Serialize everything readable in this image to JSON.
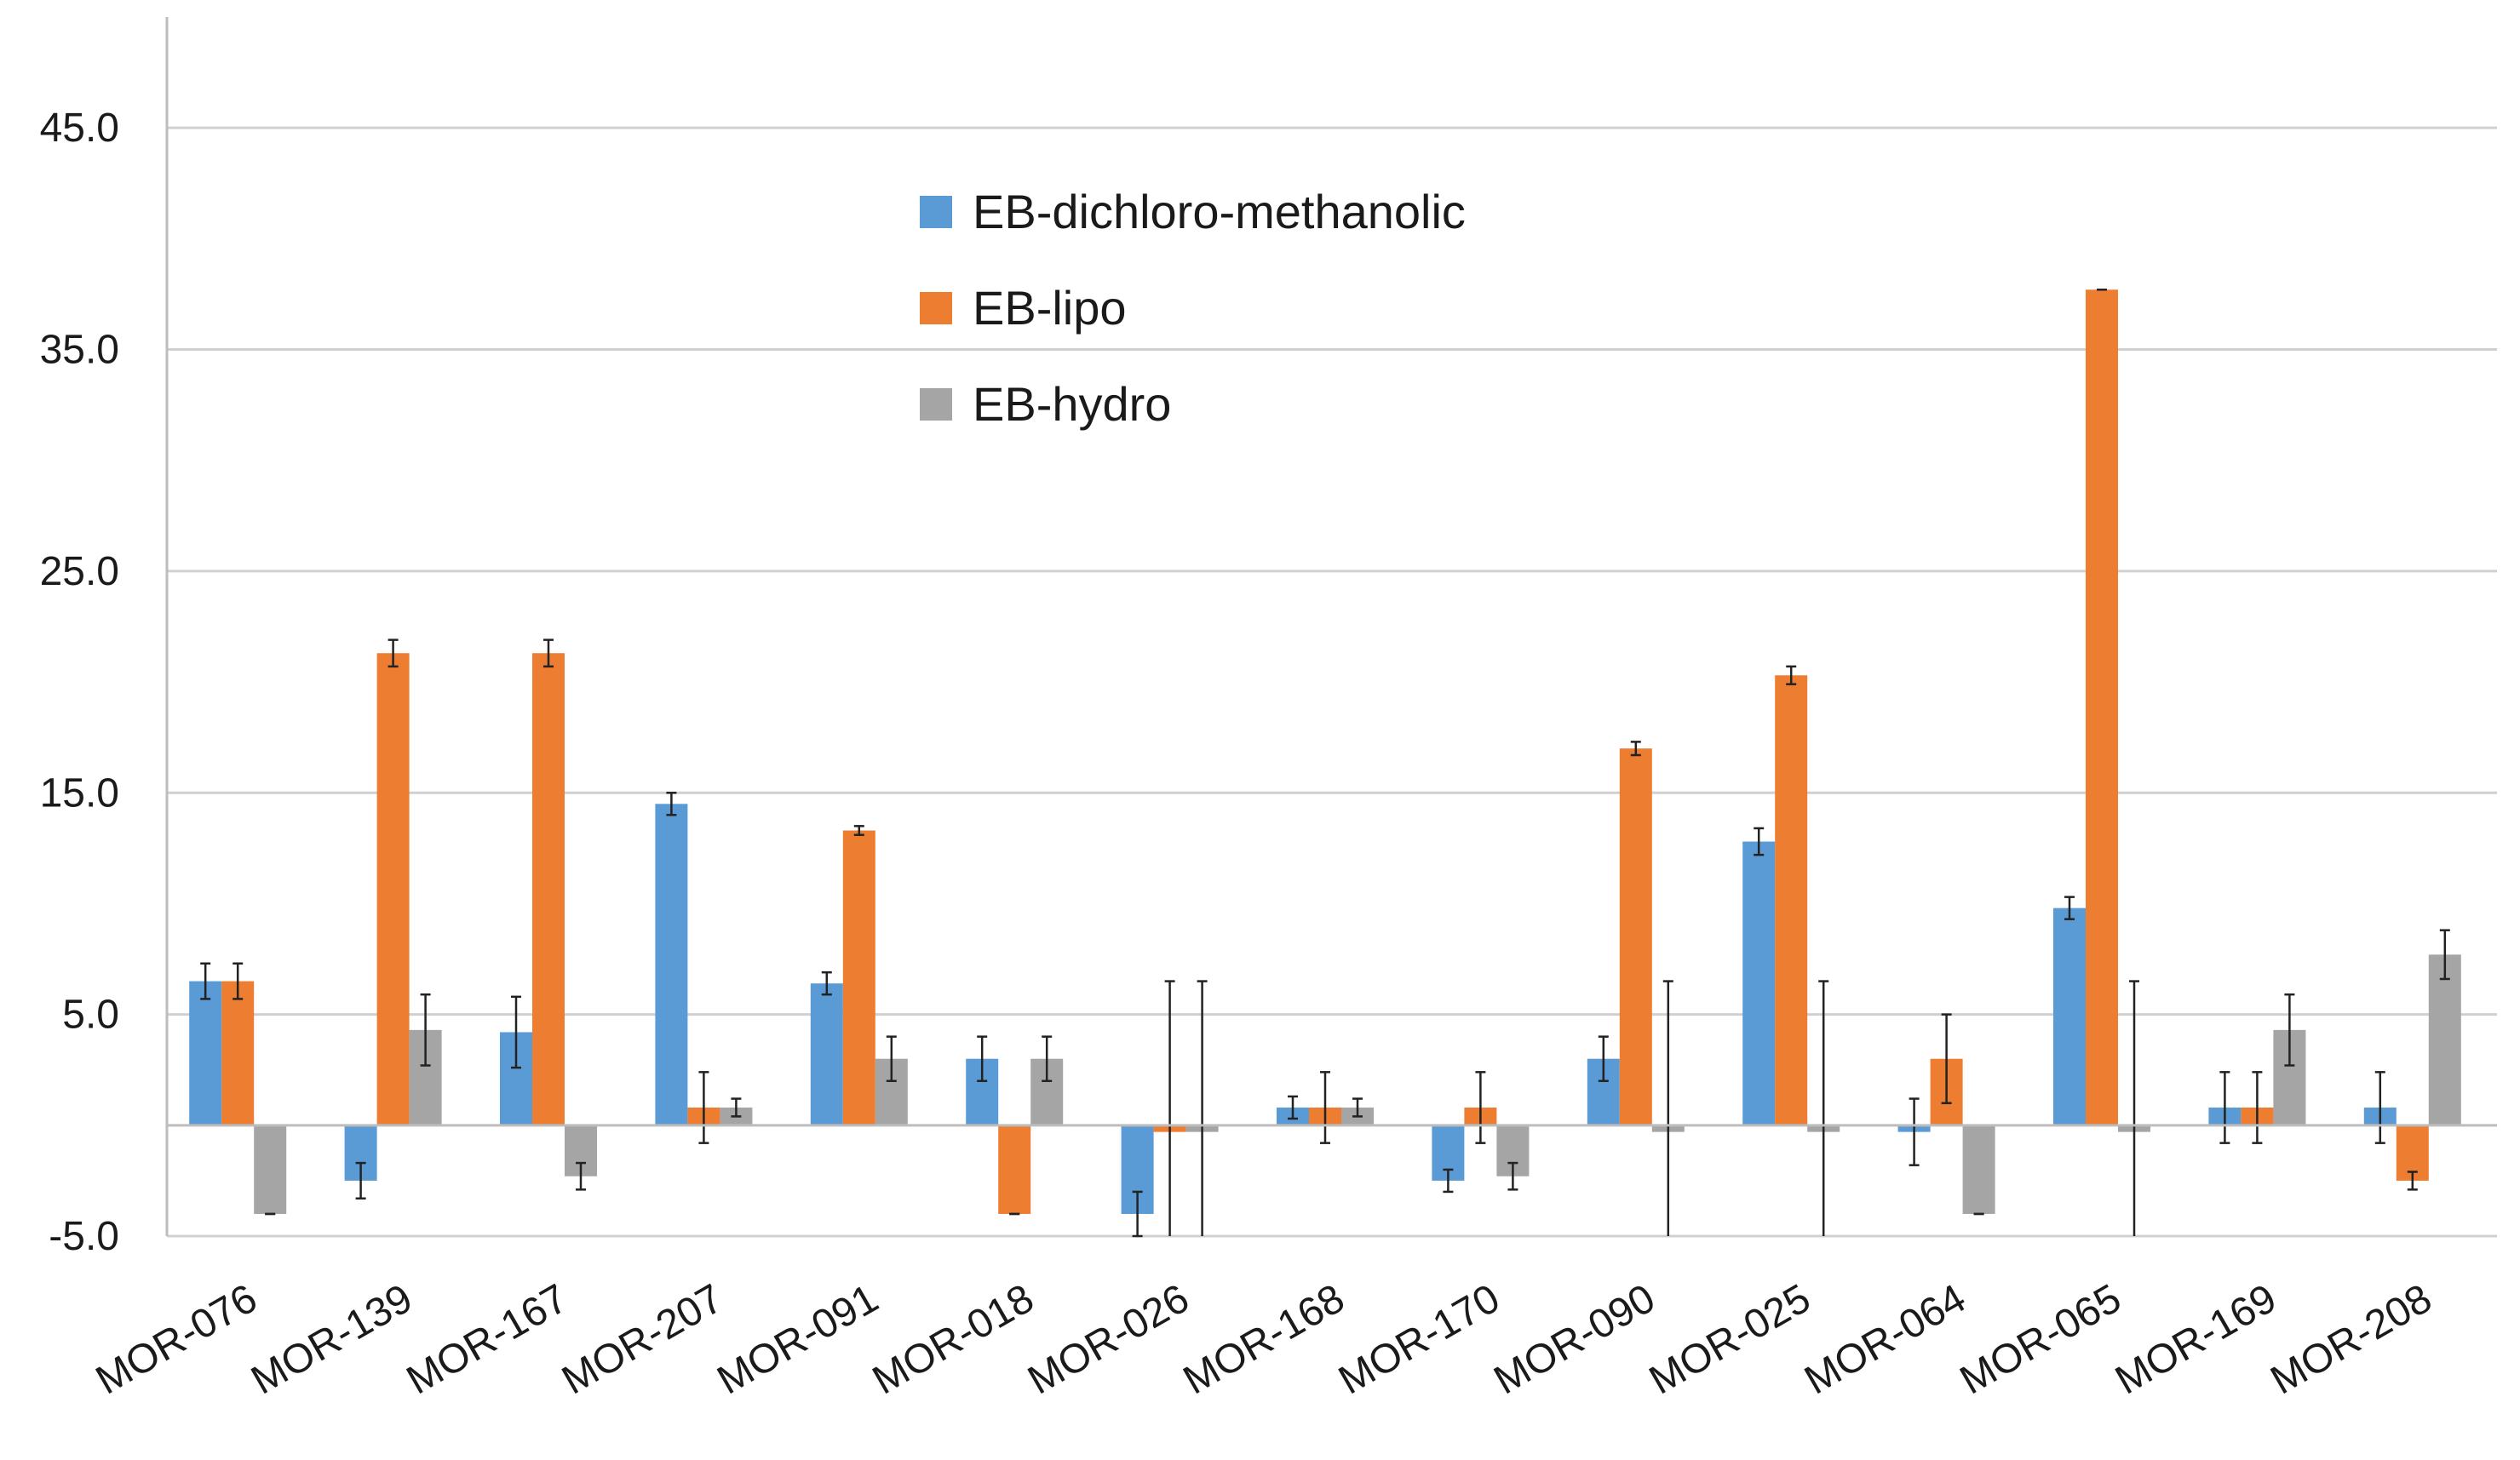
{
  "chart_data": {
    "type": "bar",
    "title": "",
    "xlabel": "",
    "ylabel": "",
    "ylim": [
      -5,
      50
    ],
    "yticks": [
      -5,
      5,
      15,
      25,
      35,
      45
    ],
    "ytick_labels": [
      "-5.0",
      "5.0",
      "15.0",
      "25.0",
      "35.0",
      "45.0"
    ],
    "grid": true,
    "legend_position": "top-center",
    "categories": [
      "MOR-076",
      "MOR-139",
      "MOR-167",
      "MOR-207",
      "MOR-091",
      "MOR-018",
      "MOR-026",
      "MOR-168",
      "MOR-170",
      "MOR-090",
      "MOR-025",
      "MOR-064",
      "MOR-065",
      "MOR-169",
      "MOR-208"
    ],
    "series": [
      {
        "name": "EB-dichloro-methanolic",
        "color": "#5b9bd5",
        "values": [
          6.5,
          -2.5,
          4.2,
          14.5,
          6.4,
          3.0,
          -4.0,
          0.8,
          -2.5,
          3.0,
          12.8,
          -0.3,
          9.8,
          0.8,
          0.8
        ],
        "errors": [
          0.8,
          0.8,
          1.6,
          0.5,
          0.5,
          1.0,
          1.0,
          0.5,
          0.5,
          1.0,
          0.6,
          1.5,
          0.5,
          1.6,
          1.6
        ]
      },
      {
        "name": "EB-lipo",
        "color": "#ed7d31",
        "values": [
          6.5,
          21.3,
          21.3,
          0.8,
          13.3,
          -4.0,
          -0.3,
          0.8,
          0.8,
          17.0,
          20.3,
          3.0,
          37.7,
          0.8,
          -2.5
        ],
        "errors": [
          0.8,
          0.6,
          0.6,
          1.6,
          0.2,
          0.0,
          6.8,
          1.6,
          1.6,
          0.3,
          0.4,
          2.0,
          0.0,
          1.6,
          0.4
        ]
      },
      {
        "name": "EB-hydro",
        "color": "#a5a5a5",
        "values": [
          -4.0,
          4.3,
          -2.3,
          0.8,
          3.0,
          3.0,
          -0.3,
          0.8,
          -2.3,
          -0.3,
          -0.3,
          -4.0,
          -0.3,
          4.3,
          7.7
        ],
        "errors": [
          0.0,
          1.6,
          0.6,
          0.4,
          1.0,
          1.0,
          6.8,
          0.4,
          0.6,
          6.8,
          6.8,
          0.0,
          6.8,
          1.6,
          1.1
        ]
      }
    ]
  }
}
